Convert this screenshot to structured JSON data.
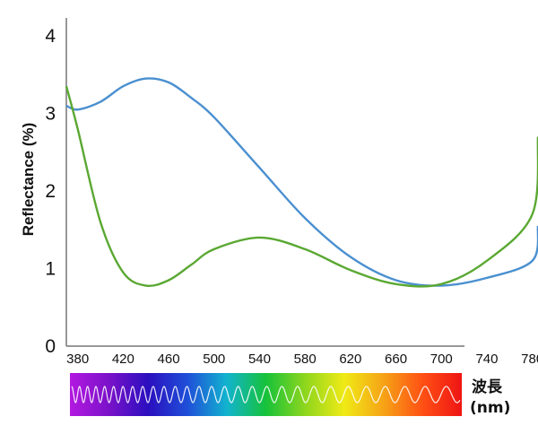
{
  "chart_data": {
    "type": "line",
    "ylabel": "Reflectance (%)",
    "xlabel_line1": "波長",
    "xlabel_line2": "(nm)",
    "xlim": [
      370,
      785
    ],
    "ylim": [
      0,
      4.2
    ],
    "x_ticks": [
      "380",
      "420",
      "460",
      "500",
      "540",
      "580",
      "620",
      "660",
      "700",
      "740",
      "780"
    ],
    "y_ticks": [
      "0",
      "1",
      "2",
      "3",
      "4"
    ],
    "grid": false,
    "legend": "none",
    "colors": {
      "blue": "#4a90d0",
      "green": "#5aa832"
    },
    "spectrum_colors": [
      "#b319e0",
      "#7a12c9",
      "#2a0fbf",
      "#1f4fd8",
      "#12b3cf",
      "#16c23a",
      "#8ed61d",
      "#f0ea16",
      "#f6a316",
      "#ff5014",
      "#ef1414"
    ],
    "series": [
      {
        "color": "#4a90d0",
        "x": [
          370,
          380,
          400,
          420,
          440,
          460,
          480,
          500,
          540,
          580,
          620,
          660,
          700,
          740,
          780,
          785
        ],
        "y": [
          3.1,
          3.05,
          3.15,
          3.35,
          3.45,
          3.4,
          3.2,
          2.95,
          2.3,
          1.65,
          1.15,
          0.85,
          0.78,
          0.88,
          1.1,
          1.55
        ]
      },
      {
        "color": "#5aa832",
        "x": [
          370,
          380,
          400,
          420,
          440,
          460,
          480,
          500,
          540,
          580,
          620,
          660,
          700,
          740,
          780,
          785
        ],
        "y": [
          3.35,
          2.8,
          1.6,
          0.95,
          0.78,
          0.85,
          1.05,
          1.25,
          1.4,
          1.25,
          0.98,
          0.8,
          0.8,
          1.1,
          1.7,
          2.7
        ]
      }
    ]
  }
}
